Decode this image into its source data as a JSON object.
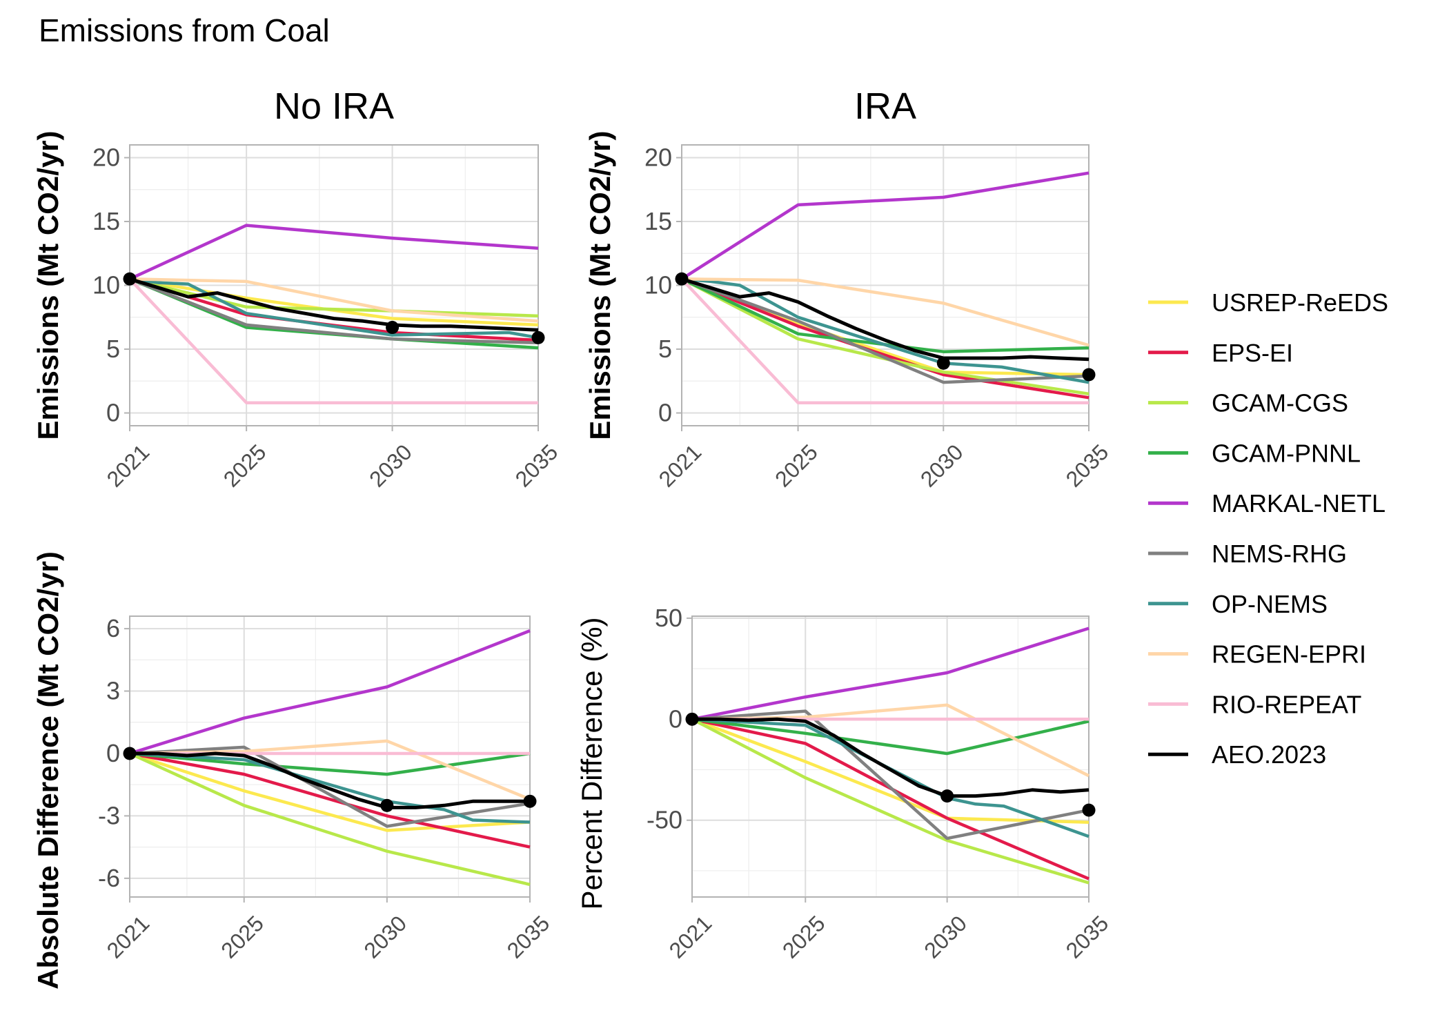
{
  "figure": {
    "title": "Emissions from Coal"
  },
  "legend": {
    "items": [
      {
        "label": "USREP-ReEDS",
        "color": "#fce94f"
      },
      {
        "label": "EPS-EI",
        "color": "#e31a4a"
      },
      {
        "label": "GCAM-CGS",
        "color": "#b8e84a"
      },
      {
        "label": "GCAM-PNNL",
        "color": "#33b04a"
      },
      {
        "label": "MARKAL-NETL",
        "color": "#b336cc"
      },
      {
        "label": "NEMS-RHG",
        "color": "#808080"
      },
      {
        "label": "OP-NEMS",
        "color": "#3d9490"
      },
      {
        "label": "REGEN-EPRI",
        "color": "#ffd6a8"
      },
      {
        "label": "RIO-REPEAT",
        "color": "#f9bcd4"
      },
      {
        "label": "AEO.2023",
        "color": "#000000"
      }
    ]
  },
  "chart_data": [
    {
      "type": "line",
      "id": "no-ira",
      "title": "No IRA",
      "xlabel": "",
      "ylabel": "Emissions (Mt CO2/yr)",
      "xlim": [
        2021,
        2035
      ],
      "ylim": [
        -1,
        21
      ],
      "x_ticks": [
        2021,
        2025,
        2030,
        2035
      ],
      "y_ticks": [
        0,
        5,
        10,
        15,
        20
      ],
      "y_tick_labels": [
        "0",
        "5",
        "10",
        "15",
        "20"
      ],
      "grid": true,
      "series": [
        {
          "name": "USREP-ReEDS",
          "x": [
            2021,
            2025,
            2030,
            2035
          ],
          "y": [
            10.5,
            9.0,
            7.4,
            6.9
          ]
        },
        {
          "name": "EPS-EI",
          "x": [
            2021,
            2025,
            2030,
            2035
          ],
          "y": [
            10.5,
            7.7,
            6.3,
            5.7
          ]
        },
        {
          "name": "GCAM-CGS",
          "x": [
            2021,
            2025,
            2030,
            2035
          ],
          "y": [
            10.5,
            8.3,
            8.0,
            7.6
          ]
        },
        {
          "name": "GCAM-PNNL",
          "x": [
            2021,
            2025,
            2030,
            2035
          ],
          "y": [
            10.5,
            6.7,
            5.8,
            5.1
          ]
        },
        {
          "name": "MARKAL-NETL",
          "x": [
            2021,
            2025,
            2030,
            2035
          ],
          "y": [
            10.5,
            14.7,
            13.7,
            12.9
          ]
        },
        {
          "name": "NEMS-RHG",
          "x": [
            2021,
            2025,
            2030,
            2035
          ],
          "y": [
            10.5,
            6.9,
            5.8,
            5.5
          ]
        },
        {
          "name": "OP-NEMS",
          "x": [
            2021,
            2022,
            2023,
            2025,
            2030,
            2034,
            2035
          ],
          "y": [
            10.5,
            10.2,
            10.1,
            7.8,
            6.1,
            6.3,
            5.9
          ]
        },
        {
          "name": "REGEN-EPRI",
          "x": [
            2021,
            2025,
            2030,
            2035
          ],
          "y": [
            10.5,
            10.3,
            8.0,
            7.2
          ]
        },
        {
          "name": "RIO-REPEAT",
          "x": [
            2021,
            2025,
            2030,
            2035
          ],
          "y": [
            10.5,
            0.8,
            0.8,
            0.8
          ]
        },
        {
          "name": "AEO.2023",
          "x": [
            2021,
            2022,
            2023,
            2024,
            2025,
            2026,
            2027,
            2028,
            2029,
            2030,
            2031,
            2032,
            2033,
            2034,
            2035
          ],
          "y": [
            10.5,
            9.8,
            9.1,
            9.4,
            8.8,
            8.2,
            7.8,
            7.4,
            7.2,
            6.9,
            6.8,
            6.8,
            6.7,
            6.6,
            6.5
          ],
          "markers_x": [
            2021,
            2030,
            2035
          ],
          "markers_y": [
            10.5,
            6.7,
            5.9
          ]
        }
      ]
    },
    {
      "type": "line",
      "id": "ira",
      "title": "IRA",
      "xlabel": "",
      "ylabel": "Emissions (Mt CO2/yr)",
      "xlim": [
        2021,
        2035
      ],
      "ylim": [
        -1,
        21
      ],
      "x_ticks": [
        2021,
        2025,
        2030,
        2035
      ],
      "y_ticks": [
        0,
        5,
        10,
        15,
        20
      ],
      "y_tick_labels": [
        "0",
        "5",
        "10",
        "15",
        "20"
      ],
      "grid": true,
      "series": [
        {
          "name": "USREP-ReEDS",
          "x": [
            2021,
            2025,
            2030,
            2035
          ],
          "y": [
            10.5,
            7.0,
            3.2,
            3.0
          ]
        },
        {
          "name": "EPS-EI",
          "x": [
            2021,
            2025,
            2030,
            2035
          ],
          "y": [
            10.5,
            6.8,
            3.0,
            1.2
          ]
        },
        {
          "name": "GCAM-CGS",
          "x": [
            2021,
            2025,
            2030,
            2035
          ],
          "y": [
            10.5,
            5.8,
            3.2,
            1.5
          ]
        },
        {
          "name": "GCAM-PNNL",
          "x": [
            2021,
            2025,
            2030,
            2035
          ],
          "y": [
            10.5,
            6.2,
            4.8,
            5.1
          ]
        },
        {
          "name": "MARKAL-NETL",
          "x": [
            2021,
            2025,
            2030,
            2035
          ],
          "y": [
            10.5,
            16.3,
            16.9,
            18.8
          ]
        },
        {
          "name": "NEMS-RHG",
          "x": [
            2021,
            2025,
            2030,
            2035
          ],
          "y": [
            10.5,
            7.2,
            2.4,
            2.9
          ]
        },
        {
          "name": "OP-NEMS",
          "x": [
            2021,
            2022,
            2023,
            2025,
            2030,
            2032,
            2035
          ],
          "y": [
            10.5,
            10.3,
            10.0,
            7.5,
            3.9,
            3.6,
            2.4
          ]
        },
        {
          "name": "REGEN-EPRI",
          "x": [
            2021,
            2025,
            2030,
            2035
          ],
          "y": [
            10.5,
            10.4,
            8.6,
            5.3
          ]
        },
        {
          "name": "RIO-REPEAT",
          "x": [
            2021,
            2025,
            2030,
            2035
          ],
          "y": [
            10.5,
            0.8,
            0.8,
            0.8
          ]
        },
        {
          "name": "AEO.2023",
          "x": [
            2021,
            2022,
            2023,
            2024,
            2025,
            2026,
            2027,
            2028,
            2029,
            2030,
            2031,
            2032,
            2033,
            2034,
            2035
          ],
          "y": [
            10.5,
            9.8,
            9.1,
            9.4,
            8.7,
            7.6,
            6.6,
            5.7,
            4.9,
            4.3,
            4.3,
            4.3,
            4.4,
            4.3,
            4.2
          ],
          "markers_x": [
            2021,
            2030,
            2035
          ],
          "markers_y": [
            10.5,
            3.9,
            3.0
          ]
        }
      ]
    },
    {
      "type": "line",
      "id": "abs-diff",
      "title": "",
      "xlabel": "",
      "ylabel": "Absolute Difference (Mt CO2/yr)",
      "xlim": [
        2021,
        2035
      ],
      "ylim": [
        -6.9,
        6.6
      ],
      "x_ticks": [
        2021,
        2025,
        2030,
        2035
      ],
      "y_ticks": [
        -6,
        -3,
        0,
        3,
        6
      ],
      "y_tick_labels": [
        "-6",
        "-3",
        "0",
        "3",
        "6"
      ],
      "grid": true,
      "series": [
        {
          "name": "USREP-ReEDS",
          "x": [
            2021,
            2025,
            2030,
            2035
          ],
          "y": [
            0,
            -1.8,
            -3.7,
            -3.3
          ]
        },
        {
          "name": "EPS-EI",
          "x": [
            2021,
            2025,
            2030,
            2035
          ],
          "y": [
            0,
            -1.0,
            -3.0,
            -4.5
          ]
        },
        {
          "name": "GCAM-CGS",
          "x": [
            2021,
            2025,
            2030,
            2035
          ],
          "y": [
            0,
            -2.5,
            -4.7,
            -6.3
          ]
        },
        {
          "name": "GCAM-PNNL",
          "x": [
            2021,
            2025,
            2030,
            2035
          ],
          "y": [
            0,
            -0.5,
            -1.0,
            0
          ]
        },
        {
          "name": "MARKAL-NETL",
          "x": [
            2021,
            2025,
            2030,
            2035
          ],
          "y": [
            0,
            1.7,
            3.2,
            5.9
          ]
        },
        {
          "name": "NEMS-RHG",
          "x": [
            2021,
            2025,
            2030,
            2035
          ],
          "y": [
            0,
            0.3,
            -3.5,
            -2.4
          ]
        },
        {
          "name": "OP-NEMS",
          "x": [
            2021,
            2025,
            2030,
            2032,
            2033,
            2035
          ],
          "y": [
            0,
            -0.3,
            -2.3,
            -2.7,
            -3.2,
            -3.3
          ]
        },
        {
          "name": "REGEN-EPRI",
          "x": [
            2021,
            2025,
            2030,
            2035
          ],
          "y": [
            0,
            0.1,
            0.6,
            -2.2
          ]
        },
        {
          "name": "RIO-REPEAT",
          "x": [
            2021,
            2025,
            2030,
            2035
          ],
          "y": [
            0,
            0,
            0,
            0
          ]
        },
        {
          "name": "AEO.2023",
          "x": [
            2021,
            2022,
            2023,
            2024,
            2025,
            2026,
            2027,
            2028,
            2029,
            2030,
            2031,
            2032,
            2033,
            2034,
            2035
          ],
          "y": [
            0,
            0,
            -0.1,
            0,
            -0.1,
            -0.6,
            -1.2,
            -1.7,
            -2.2,
            -2.6,
            -2.6,
            -2.5,
            -2.3,
            -2.3,
            -2.3
          ],
          "markers_x": [
            2021,
            2030,
            2035
          ],
          "markers_y": [
            0,
            -2.5,
            -2.3
          ]
        }
      ]
    },
    {
      "type": "line",
      "id": "pct-diff",
      "title": "",
      "xlabel": "",
      "ylabel": "Percent Difference (%)",
      "xlim": [
        2021,
        2035
      ],
      "ylim": [
        -88,
        51
      ],
      "x_ticks": [
        2021,
        2025,
        2030,
        2035
      ],
      "y_ticks": [
        -50,
        0,
        50
      ],
      "y_tick_labels": [
        "-50",
        "0",
        "50"
      ],
      "grid": true,
      "series": [
        {
          "name": "USREP-ReEDS",
          "x": [
            2021,
            2025,
            2030,
            2035
          ],
          "y": [
            0,
            -21,
            -49,
            -51
          ]
        },
        {
          "name": "EPS-EI",
          "x": [
            2021,
            2025,
            2030,
            2035
          ],
          "y": [
            0,
            -12,
            -49,
            -79
          ]
        },
        {
          "name": "GCAM-CGS",
          "x": [
            2021,
            2025,
            2030,
            2035
          ],
          "y": [
            0,
            -29,
            -60,
            -81
          ]
        },
        {
          "name": "GCAM-PNNL",
          "x": [
            2021,
            2025,
            2030,
            2035
          ],
          "y": [
            0,
            -7,
            -17,
            -1
          ]
        },
        {
          "name": "MARKAL-NETL",
          "x": [
            2021,
            2025,
            2030,
            2035
          ],
          "y": [
            0,
            11,
            23,
            45
          ]
        },
        {
          "name": "NEMS-RHG",
          "x": [
            2021,
            2025,
            2030,
            2035
          ],
          "y": [
            0,
            4,
            -59,
            -45
          ]
        },
        {
          "name": "OP-NEMS",
          "x": [
            2021,
            2025,
            2030,
            2031,
            2032,
            2035
          ],
          "y": [
            0,
            -3,
            -39,
            -42,
            -43,
            -58
          ]
        },
        {
          "name": "REGEN-EPRI",
          "x": [
            2021,
            2025,
            2030,
            2035
          ],
          "y": [
            0,
            1,
            7,
            -28
          ]
        },
        {
          "name": "RIO-REPEAT",
          "x": [
            2021,
            2025,
            2030,
            2035
          ],
          "y": [
            0,
            0,
            0,
            0
          ]
        },
        {
          "name": "AEO.2023",
          "x": [
            2021,
            2022,
            2023,
            2024,
            2025,
            2026,
            2027,
            2028,
            2029,
            2030,
            2031,
            2032,
            2033,
            2034,
            2035
          ],
          "y": [
            0,
            0,
            -0.5,
            0,
            -1,
            -8,
            -17,
            -25,
            -33,
            -38,
            -38,
            -37,
            -35,
            -36,
            -35
          ],
          "markers_x": [
            2021,
            2030,
            2035
          ],
          "markers_y": [
            0,
            -38,
            -45
          ]
        }
      ]
    }
  ]
}
